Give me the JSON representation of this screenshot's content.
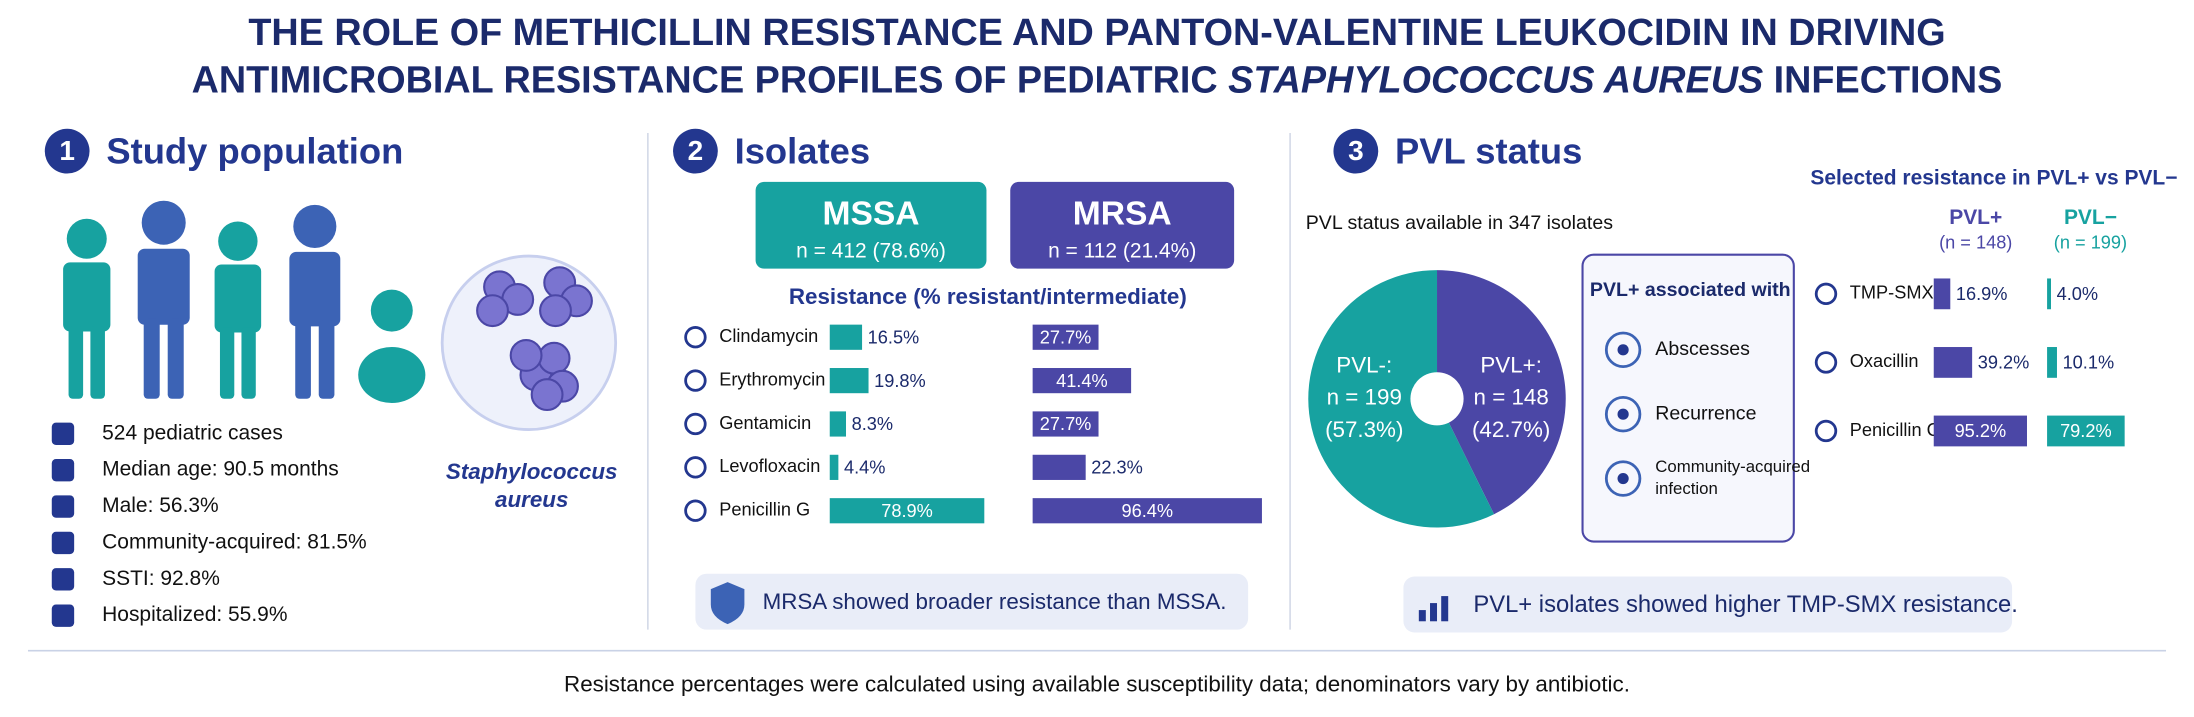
{
  "title": {
    "line1": "THE ROLE OF METHICILLIN RESISTANCE AND PANTON-VALENTINE LEUKOCIDIN IN DRIVING",
    "line2_start": "ANTIMICROBIAL RESISTANCE PROFILES OF PEDIATRIC ",
    "line2_italic": "STAPHYLOCOCCUS AUREUS",
    "line2_end": " INFECTIONS"
  },
  "study": {
    "number": "1",
    "title": "Study population",
    "organism": [
      "Staphylococcus",
      "aureus"
    ],
    "facts": [
      "524 pediatric cases",
      "Median age: 90.5 months",
      "Male: 56.3%",
      "Community-acquired: 81.5%",
      "SSTI: 92.8%",
      "Hospitalized: 55.9%"
    ]
  },
  "isolates": {
    "number": "2",
    "title": "Isolates",
    "groups": [
      {
        "name": "MSSA",
        "count": "n = 412 (78.6%)"
      },
      {
        "name": "MRSA",
        "count": "n = 112 (21.4%)"
      }
    ],
    "resistance_title": "Resistance (% resistant/intermediate)",
    "antibiotics": [
      {
        "name": "Clindamycin",
        "mssa": 16.5,
        "mssa_label": "16.5%",
        "mrsa": 27.7,
        "mrsa_label": "27.7%"
      },
      {
        "name": "Erythromycin",
        "mssa": 19.8,
        "mssa_label": "19.8%",
        "mrsa": 41.4,
        "mrsa_label": "41.4%"
      },
      {
        "name": "Gentamicin",
        "mssa": 8.3,
        "mssa_label": "8.3%",
        "mrsa": 27.7,
        "mrsa_label": "27.7%"
      },
      {
        "name": "Levofloxacin",
        "mssa": 4.4,
        "mssa_label": "4.4%",
        "mrsa": 22.3,
        "mrsa_label": "22.3%"
      },
      {
        "name": "Penicillin G",
        "mssa": 78.9,
        "mssa_label": "78.9%",
        "mrsa": 96.4,
        "mrsa_label": "96.4%"
      }
    ],
    "note": "MRSA showed broader resistance than MSSA."
  },
  "pvl": {
    "number": "3",
    "title": "PVL status",
    "available": "PVL status available in 347 isolates",
    "pie": [
      {
        "name": "PVL-:",
        "count": "n = 199",
        "value": 57.3,
        "label": "(57.3%)"
      },
      {
        "name": "PVL+:",
        "count": "n = 148",
        "value": 42.7,
        "label": "(42.7%)"
      }
    ],
    "associated_title": "PVL+ associated with",
    "associated": [
      [
        "Abscesses"
      ],
      [
        "Recurrence"
      ],
      [
        "Community-acquired",
        "infection"
      ]
    ],
    "comparison_title": "Selected resistance in PVL+ vs PVL−",
    "columns": [
      {
        "name": "PVL+",
        "n": "(n = 148)"
      },
      {
        "name": "PVL−",
        "n": "(n = 199)"
      }
    ],
    "rows": [
      {
        "name": "TMP-SMX",
        "pos": 16.9,
        "pos_label": "16.9%",
        "neg": 4.0,
        "neg_label": "4.0%"
      },
      {
        "name": "Oxacillin",
        "pos": 39.2,
        "pos_label": "39.2%",
        "neg": 10.1,
        "neg_label": "10.1%"
      },
      {
        "name": "Penicillin G",
        "pos": 95.2,
        "pos_label": "95.2%",
        "neg": 79.2,
        "neg_label": "79.2%"
      }
    ],
    "note": "PVL+ isolates showed higher TMP-SMX resistance."
  },
  "footer": "Resistance percentages were calculated using available susceptibility data; denominators vary by antibiotic."
}
